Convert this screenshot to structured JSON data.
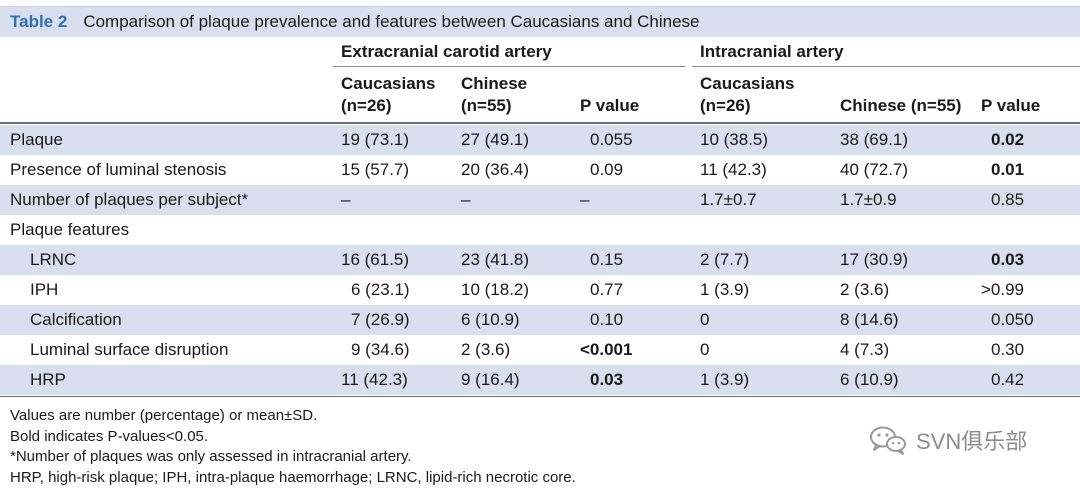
{
  "title": {
    "label": "Table 2",
    "text": "Comparison of plaque prevalence and features between Caucasians and Chinese"
  },
  "groups": {
    "extracranial": "Extracranial carotid artery",
    "intracranial": "Intracranial artery"
  },
  "subheaders": {
    "ext_caucasians_1": "Caucasians",
    "ext_caucasians_2": "(n=26)",
    "ext_chinese_1": "Chinese",
    "ext_chinese_2": "(n=55)",
    "ext_pvalue": "P value",
    "int_caucasians_1": "Caucasians",
    "int_caucasians_2": "(n=26)",
    "int_chinese": "Chinese (n=55)",
    "int_pvalue": "P value"
  },
  "rows": [
    {
      "label": "Plaque",
      "c1": "19 (73.1)",
      "c2": "27 (49.1)",
      "c3": "0.055",
      "c4": "10 (38.5)",
      "c5": "38 (69.1)",
      "c6": "0.02"
    },
    {
      "label": "Presence of luminal stenosis",
      "c1": "15 (57.7)",
      "c2": "20 (36.4)",
      "c3": "0.09",
      "c4": "11 (42.3)",
      "c5": "40 (72.7)",
      "c6": "0.01"
    },
    {
      "label": "Number of plaques per subject*",
      "c1": "–",
      "c2": "–",
      "c3": "–",
      "c4": "1.7±0.7",
      "c5": "1.7±0.9",
      "c6": "0.85"
    },
    {
      "label": "Plaque features",
      "c1": "",
      "c2": "",
      "c3": "",
      "c4": "",
      "c5": "",
      "c6": ""
    },
    {
      "label": "LRNC",
      "c1": "16 (61.5)",
      "c2": "23 (41.8)",
      "c3": "0.15",
      "c4": "2 (7.7)",
      "c5": "17 (30.9)",
      "c6": "0.03"
    },
    {
      "label": "IPH",
      "c1": "6 (23.1)",
      "c2": "10 (18.2)",
      "c3": "0.77",
      "c4": "1 (3.9)",
      "c5": "2 (3.6)",
      "c6": ">0.99"
    },
    {
      "label": "Calcification",
      "c1": "7 (26.9)",
      "c2": "6 (10.9)",
      "c3": "0.10",
      "c4": "0",
      "c5": "8 (14.6)",
      "c6": "0.050"
    },
    {
      "label": "Luminal surface disruption",
      "c1": "9 (34.6)",
      "c2": "2 (3.6)",
      "c3": "<0.001",
      "c4": "0",
      "c5": "4 (7.3)",
      "c6": "0.30"
    },
    {
      "label": "HRP",
      "c1": "11 (42.3)",
      "c2": "9 (16.4)",
      "c3": "0.03",
      "c4": "1 (3.9)",
      "c5": "6 (10.9)",
      "c6": "0.42"
    }
  ],
  "notes": [
    "Values are number (percentage) or mean±SD.",
    "Bold indicates P-values<0.05.",
    "*Number of plaques was only assessed in intracranial artery.",
    "HRP, high-risk plaque; IPH, intra-plaque haemorrhage; LRNC, lipid-rich necrotic core."
  ],
  "watermark": {
    "icon": "wechat-icon",
    "text": "SVN俱乐部"
  }
}
